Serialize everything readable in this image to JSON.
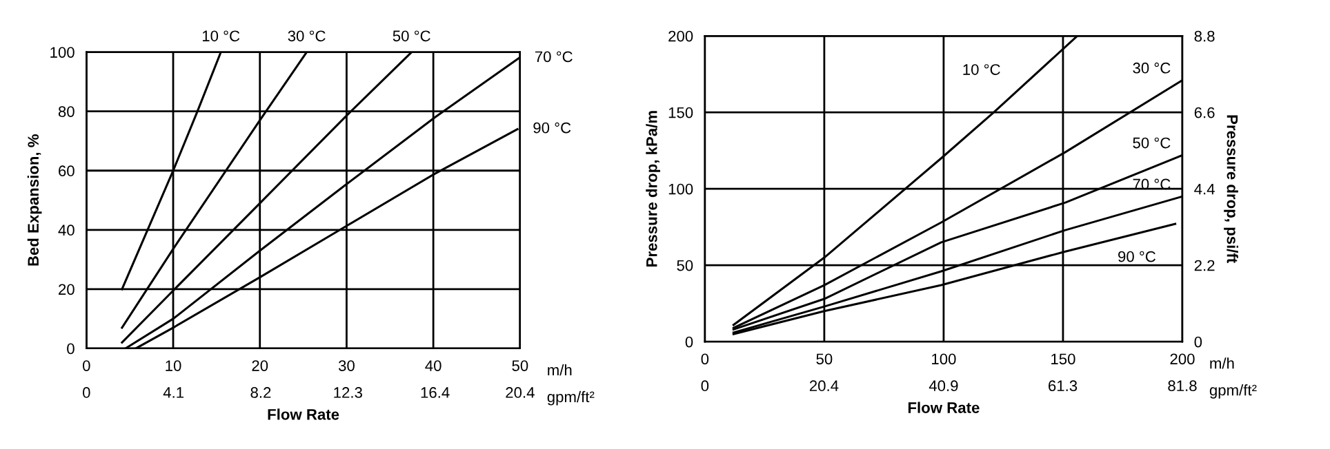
{
  "chart_data": [
    {
      "type": "line",
      "xlabel": "Flow Rate",
      "ylabel": "Bed Expansion, %",
      "xlim": [
        0,
        50
      ],
      "xticks": [
        0,
        10,
        20,
        30,
        40,
        50
      ],
      "ylim": [
        0,
        100
      ],
      "yticks": [
        0,
        20,
        40,
        60,
        80,
        100
      ],
      "x2lim": [
        0,
        20.4
      ],
      "x2ticks": [
        0,
        4.1,
        8.2,
        12.3,
        16.4,
        20.4
      ],
      "grid": true,
      "annotations": [
        "m/h",
        "gpm/ft²"
      ],
      "series": [
        {
          "name": "10 °C",
          "color": "#000000",
          "x": [
            4.1,
            10,
            12.8,
            15.5
          ],
          "values": [
            20,
            60,
            80,
            100
          ]
        },
        {
          "name": "30 °C",
          "color": "#000000",
          "x": [
            4.1,
            10.1,
            20,
            25.4
          ],
          "values": [
            7,
            34,
            77,
            100
          ]
        },
        {
          "name": "50 °C",
          "color": "#000000",
          "x": [
            4.1,
            10,
            20,
            29.8,
            37.5
          ],
          "values": [
            2,
            19.5,
            49,
            78,
            100
          ]
        },
        {
          "name": "70 °C",
          "color": "#000000",
          "x": [
            4.5,
            10,
            20,
            29.8,
            40.2,
            49.9
          ],
          "values": [
            0,
            10,
            33,
            55,
            78,
            98
          ]
        },
        {
          "name": "90 °C",
          "color": "#000000",
          "x": [
            5.7,
            10,
            20,
            29.8,
            40.2,
            49.7
          ],
          "values": [
            0,
            7,
            24,
            41,
            59,
            74
          ]
        }
      ]
    },
    {
      "type": "line",
      "xlabel": "Flow Rate",
      "ylabel": "Pressure drop, kPa/m",
      "y2label": "Pressure drop, psi/ft",
      "xlim": [
        0,
        200
      ],
      "xticks": [
        0,
        50,
        100,
        150,
        200
      ],
      "ylim": [
        0,
        200
      ],
      "yticks": [
        0,
        50,
        100,
        150,
        200
      ],
      "y2lim": [
        0,
        8.8
      ],
      "y2ticks": [
        0,
        2.2,
        4.4,
        6.6,
        8.8
      ],
      "x2lim": [
        0,
        81.8
      ],
      "x2ticks": [
        0,
        20.4,
        40.9,
        61.3,
        81.8
      ],
      "grid": true,
      "annotations": [
        "m/h",
        "gpm/ft²"
      ],
      "series": [
        {
          "name": "10 °C",
          "color": "#000000",
          "x": [
            12,
            50,
            99,
            121,
            156
          ],
          "values": [
            11,
            55,
            120,
            150,
            200
          ]
        },
        {
          "name": "30 °C",
          "color": "#000000",
          "x": [
            12,
            50,
            99,
            151,
            200
          ],
          "values": [
            9,
            37,
            78,
            124,
            171
          ]
        },
        {
          "name": "50 °C",
          "color": "#000000",
          "x": [
            12,
            50,
            99,
            151,
            200
          ],
          "values": [
            8,
            28,
            65,
            91,
            122
          ]
        },
        {
          "name": "70 °C",
          "color": "#000000",
          "x": [
            12,
            50,
            99,
            151,
            200
          ],
          "values": [
            6,
            23,
            46,
            73,
            95
          ]
        },
        {
          "name": "90 °C",
          "color": "#000000",
          "x": [
            12,
            50,
            99,
            151,
            197
          ],
          "values": [
            5,
            20,
            37,
            59,
            77
          ]
        }
      ]
    }
  ]
}
